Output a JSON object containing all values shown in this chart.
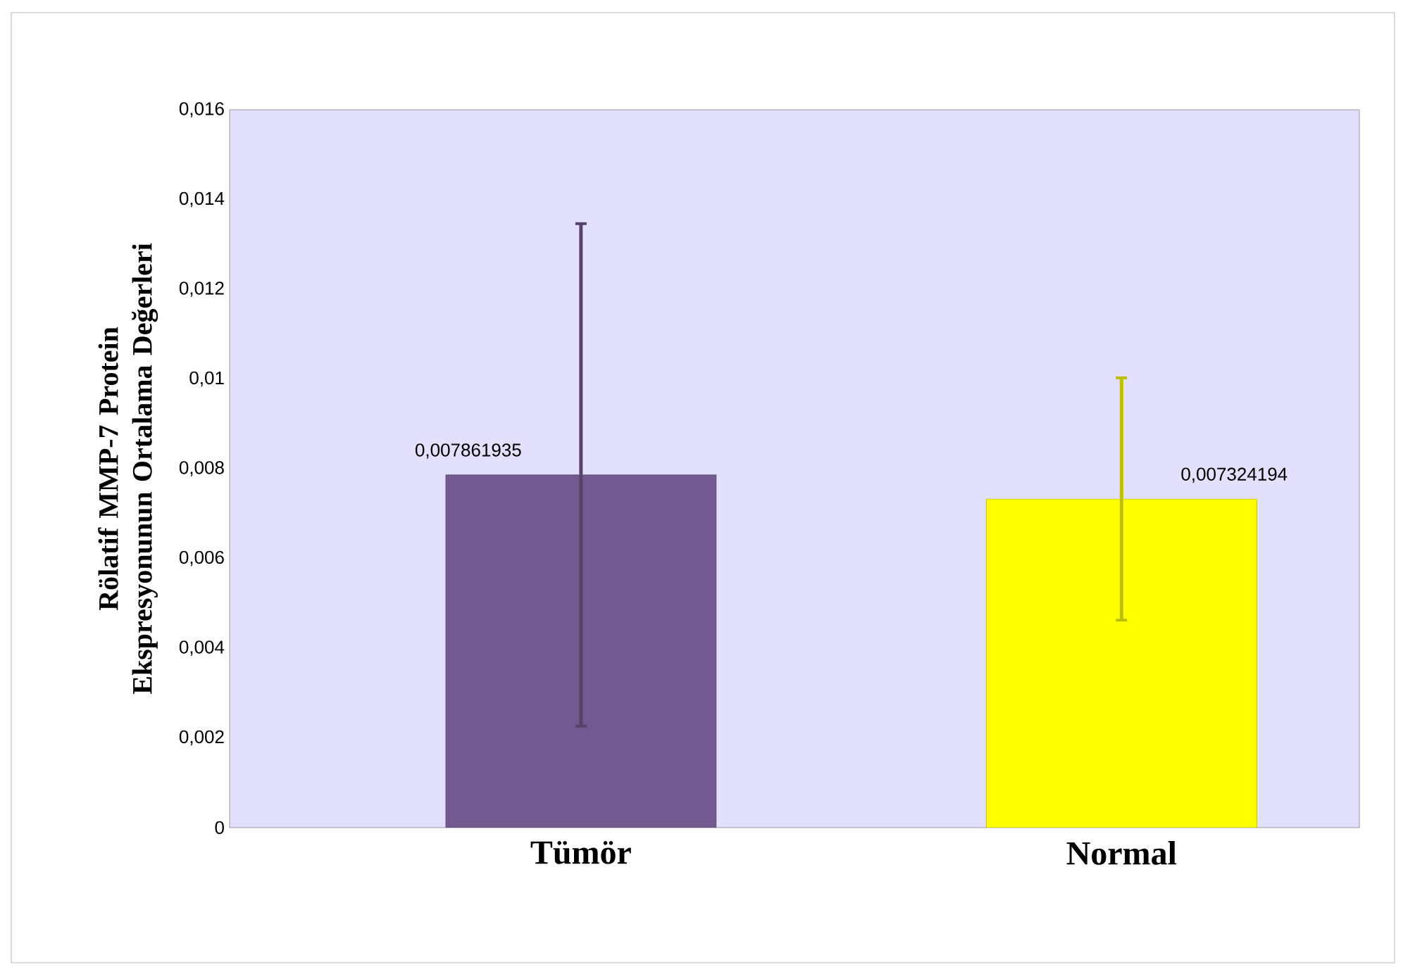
{
  "chart_data": {
    "type": "bar",
    "ylabel": "Rölatif MMP-7 Protein Ekspresyonunun Ortalama Değerleri",
    "categories": [
      "Tümör",
      "Normal"
    ],
    "values": [
      0.007861935,
      0.007324194
    ],
    "colors": [
      "#725990",
      "#ffff00"
    ],
    "errors": [
      0.0056,
      0.0027
    ],
    "value_labels": [
      "0,007861935",
      "0,007324194"
    ],
    "ylim": [
      0,
      0.016
    ],
    "yticks": [
      0,
      {
        "value": 0.002,
        "label": "0,002"
      },
      {
        "value": 0.004,
        "label": "0,004"
      },
      {
        "value": 0.006,
        "label": "0,006"
      },
      {
        "value": 0.008,
        "label": "0,008"
      },
      {
        "value": 0.01,
        "label": "0,01"
      },
      {
        "value": 0.012,
        "label": "0,012"
      },
      {
        "value": 0.014,
        "label": "0,014"
      },
      {
        "value": 0.016,
        "label": "0,016"
      }
    ],
    "grid": false
  }
}
